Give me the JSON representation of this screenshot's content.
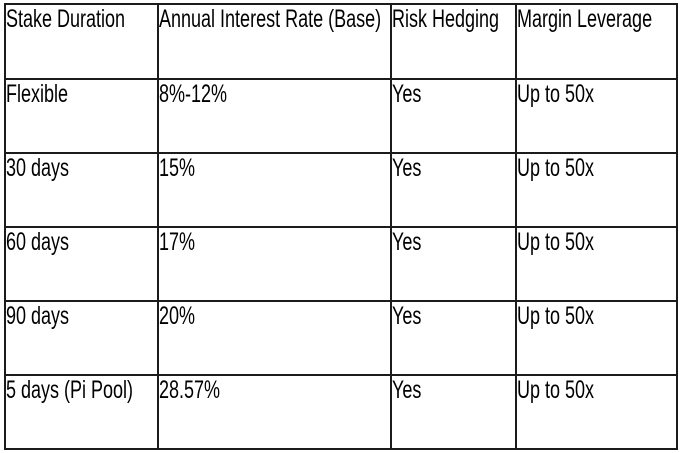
{
  "page": {
    "background": "#ffffff",
    "border_color": "#1b1b1b",
    "text_color": "#000000"
  },
  "table": {
    "headers": [
      "Stake Duration",
      "Annual Interest Rate (Base)",
      "Risk Hedging",
      "Margin Leverage"
    ],
    "rows": [
      [
        "Flexible",
        "8%-12%",
        "Yes",
        "Up to 50x"
      ],
      [
        "30 days",
        "15%",
        "Yes",
        "Up to 50x"
      ],
      [
        "60 days",
        "17%",
        "Yes",
        "Up to 50x"
      ],
      [
        "90 days",
        "20%",
        "Yes",
        "Up to 50x"
      ],
      [
        "5 days (Pi Pool)",
        "28.57%",
        "Yes",
        "Up to 50x"
      ]
    ]
  }
}
